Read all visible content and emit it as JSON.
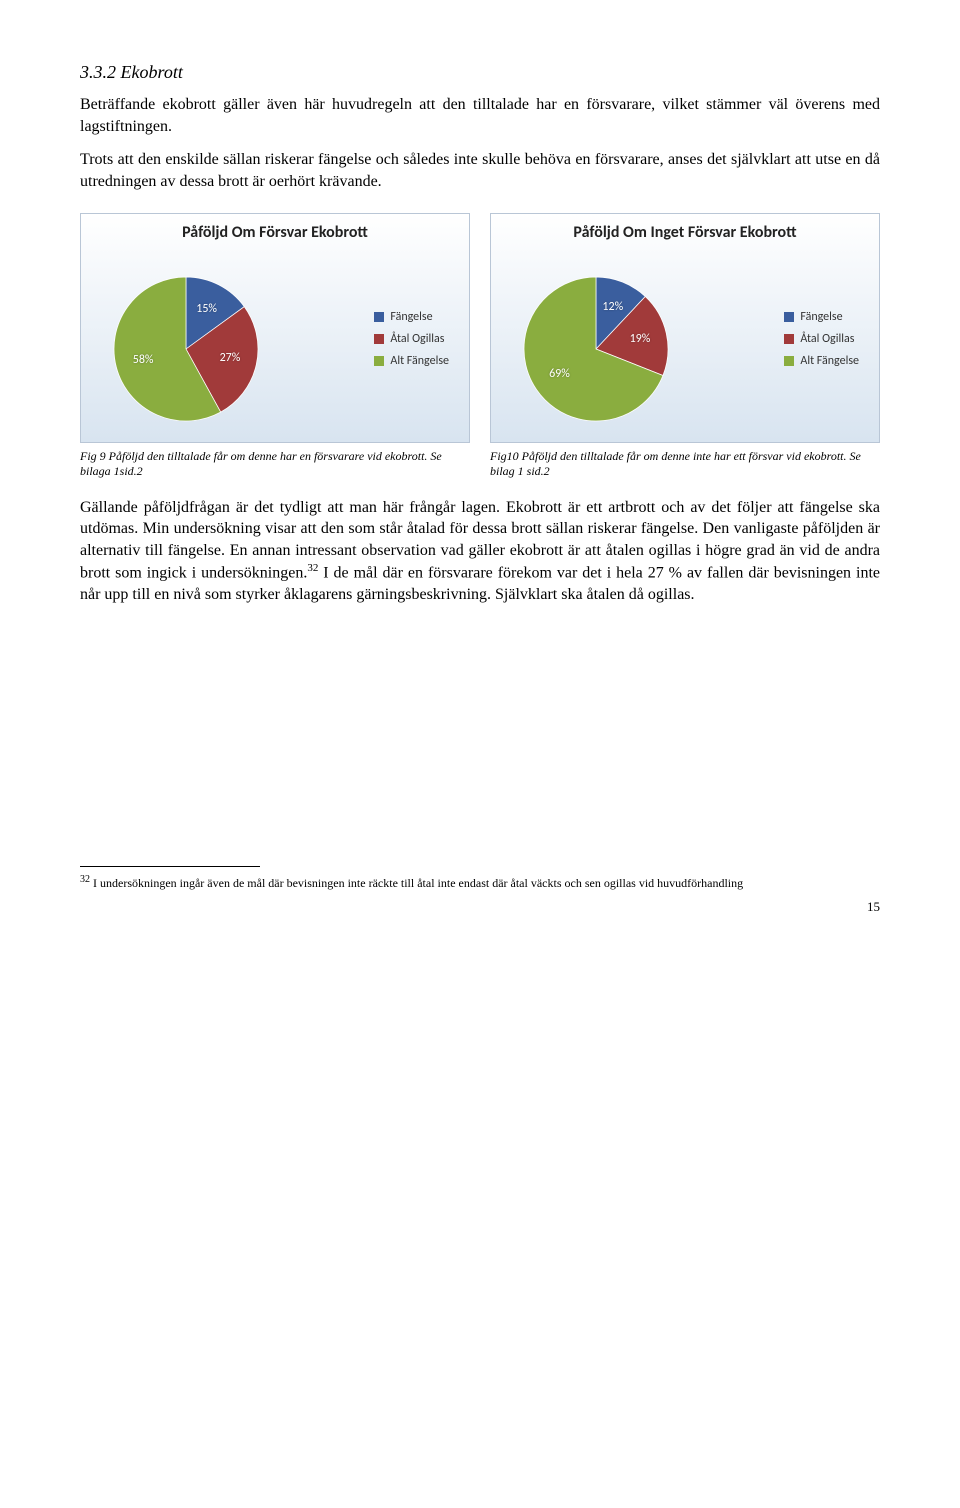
{
  "heading": "3.3.2  Ekobrott",
  "para1": "Beträffande ekobrott gäller även här huvudregeln att den tilltalade har en försvarare, vilket stämmer väl överens med lagstiftningen.",
  "para2": "Trots att den enskilde sällan riskerar fängelse och således inte skulle behöva en försvarare, anses det självklart att utse en då utredningen av dessa brott är oerhört krävande.",
  "chart_left": {
    "title": "Påföljd Om Försvar Ekobrott",
    "slices": [
      {
        "label": "Fängelse",
        "value": 15,
        "color": "#3a5e9e"
      },
      {
        "label": "Åtal Ogillas",
        "value": 27,
        "color": "#a13a3a"
      },
      {
        "label": "Alt Fängelse",
        "value": 58,
        "color": "#8aad3f"
      }
    ],
    "background_gradient": [
      "#ffffff",
      "#d8e4f0"
    ],
    "text_color": "#ffffff",
    "label_fontsize": 12,
    "title_fontsize": 16
  },
  "chart_right": {
    "title": "Påföljd Om Inget Försvar Ekobrott",
    "slices": [
      {
        "label": "Fängelse",
        "value": 12,
        "color": "#3a5e9e"
      },
      {
        "label": "Åtal Ogillas",
        "value": 19,
        "color": "#a13a3a"
      },
      {
        "label": "Alt Fängelse",
        "value": 69,
        "color": "#8aad3f"
      }
    ],
    "background_gradient": [
      "#ffffff",
      "#d8e4f0"
    ],
    "text_color": "#ffffff",
    "label_fontsize": 12,
    "title_fontsize": 16
  },
  "caption_left": "Fig 9  Påföljd den tilltalade får om denne har en försvarare\n         vid ekobrott. Se bilaga 1sid.2",
  "caption_right": "Fig10  Påföljd den tilltalade får om denne inte har ett\n         försvar vid ekobrott. Se bilag 1 sid.2",
  "para3_a": "Gällande påföljdfrågan är det tydligt att man här frångår lagen. Ekobrott är ett artbrott och av det följer att fängelse ska utdömas. Min undersökning visar att den som står åtalad för dessa brott sällan riskerar fängelse. Den vanligaste påföljden är alternativ till fängelse. En annan intressant observation vad gäller ekobrott är att åtalen ogillas i högre grad än vid de andra brott som ingick i undersökningen.",
  "para3_sup": "32",
  "para3_b": " I de mål där en försvarare förekom var det i hela 27 % av fallen där bevisningen inte når upp till en nivå som styrker åklagarens gärningsbeskrivning. Självklart ska åtalen då ogillas.",
  "footnote_num": "32",
  "footnote_text": " I undersökningen ingår även de mål där bevisningen inte räckte till åtal inte endast där åtal väckts och sen ogillas vid huvudförhandling",
  "page_number": "15"
}
